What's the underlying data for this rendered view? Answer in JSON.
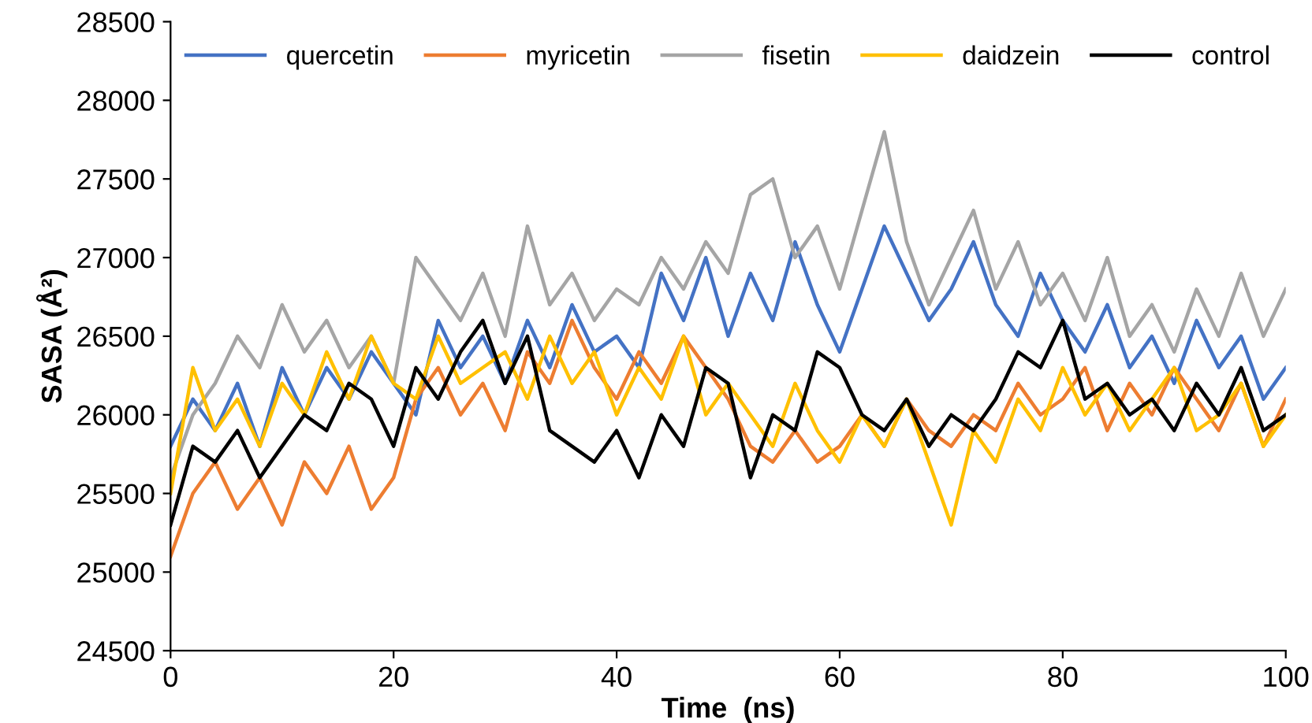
{
  "chart_data": {
    "type": "line",
    "xlabel": "Time  (ns)",
    "ylabel": "SASA (Å²)",
    "x": [
      0,
      2,
      4,
      6,
      8,
      10,
      12,
      14,
      16,
      18,
      20,
      22,
      24,
      26,
      28,
      30,
      32,
      34,
      36,
      38,
      40,
      42,
      44,
      46,
      48,
      50,
      52,
      54,
      56,
      58,
      60,
      62,
      64,
      66,
      68,
      70,
      72,
      74,
      76,
      78,
      80,
      82,
      84,
      86,
      88,
      90,
      92,
      94,
      96,
      98,
      100
    ],
    "xlim": [
      0,
      100
    ],
    "xticks": [
      0,
      20,
      40,
      60,
      80,
      100
    ],
    "ylim": [
      24500,
      28500
    ],
    "yticks": [
      24500,
      25000,
      25500,
      26000,
      26500,
      27000,
      27500,
      28000,
      28500
    ],
    "grid": false,
    "legend": "top",
    "line_style": "solid",
    "marker": "none",
    "series": [
      {
        "name": "quercetin",
        "color": "#4472c4",
        "values": [
          25800,
          26100,
          25900,
          26200,
          25800,
          26300,
          26000,
          26300,
          26100,
          26400,
          26200,
          26000,
          26600,
          26300,
          26500,
          26200,
          26600,
          26300,
          26700,
          26400,
          26500,
          26300,
          26900,
          26600,
          27000,
          26500,
          26900,
          26600,
          27100,
          26700,
          26400,
          26800,
          27200,
          26900,
          26600,
          26800,
          27100,
          26700,
          26500,
          26900,
          26600,
          26400,
          26700,
          26300,
          26500,
          26200,
          26600,
          26300,
          26500,
          26100,
          26300
        ]
      },
      {
        "name": "myricetin",
        "color": "#ed7d31",
        "values": [
          25100,
          25500,
          25700,
          25400,
          25600,
          25300,
          25700,
          25500,
          25800,
          25400,
          25600,
          26100,
          26300,
          26000,
          26200,
          25900,
          26400,
          26200,
          26600,
          26300,
          26100,
          26400,
          26200,
          26500,
          26300,
          26100,
          25800,
          25700,
          25900,
          25700,
          25800,
          26000,
          25800,
          26100,
          25900,
          25800,
          26000,
          25900,
          26200,
          26000,
          26100,
          26300,
          25900,
          26200,
          26000,
          26300,
          26100,
          25900,
          26200,
          25800,
          26100
        ]
      },
      {
        "name": "fisetin",
        "color": "#a5a5a5",
        "values": [
          25600,
          26000,
          26200,
          26500,
          26300,
          26700,
          26400,
          26600,
          26300,
          26500,
          26200,
          27000,
          26800,
          26600,
          26900,
          26500,
          27200,
          26700,
          26900,
          26600,
          26800,
          26700,
          27000,
          26800,
          27100,
          26900,
          27400,
          27500,
          27000,
          27200,
          26800,
          27300,
          27800,
          27100,
          26700,
          27000,
          27300,
          26800,
          27100,
          26700,
          26900,
          26600,
          27000,
          26500,
          26700,
          26400,
          26800,
          26500,
          26900,
          26500,
          26800
        ]
      },
      {
        "name": "daidzein",
        "color": "#ffc000",
        "values": [
          25500,
          26300,
          25900,
          26100,
          25800,
          26200,
          26000,
          26400,
          26100,
          26500,
          26200,
          26100,
          26500,
          26200,
          26300,
          26400,
          26100,
          26500,
          26200,
          26400,
          26000,
          26300,
          26100,
          26500,
          26000,
          26200,
          26000,
          25800,
          26200,
          25900,
          25700,
          26000,
          25800,
          26100,
          25700,
          25300,
          25900,
          25700,
          26100,
          25900,
          26300,
          26000,
          26200,
          25900,
          26100,
          26300,
          25900,
          26000,
          26200,
          25800,
          26000
        ]
      },
      {
        "name": "control",
        "color": "#000000",
        "values": [
          25300,
          25800,
          25700,
          25900,
          25600,
          25800,
          26000,
          25900,
          26200,
          26100,
          25800,
          26300,
          26100,
          26400,
          26600,
          26200,
          26500,
          25900,
          25800,
          25700,
          25900,
          25600,
          26000,
          25800,
          26300,
          26200,
          25600,
          26000,
          25900,
          26400,
          26300,
          26000,
          25900,
          26100,
          25800,
          26000,
          25900,
          26100,
          26400,
          26300,
          26600,
          26100,
          26200,
          26000,
          26100,
          25900,
          26200,
          26000,
          26300,
          25900,
          26000
        ]
      }
    ]
  }
}
